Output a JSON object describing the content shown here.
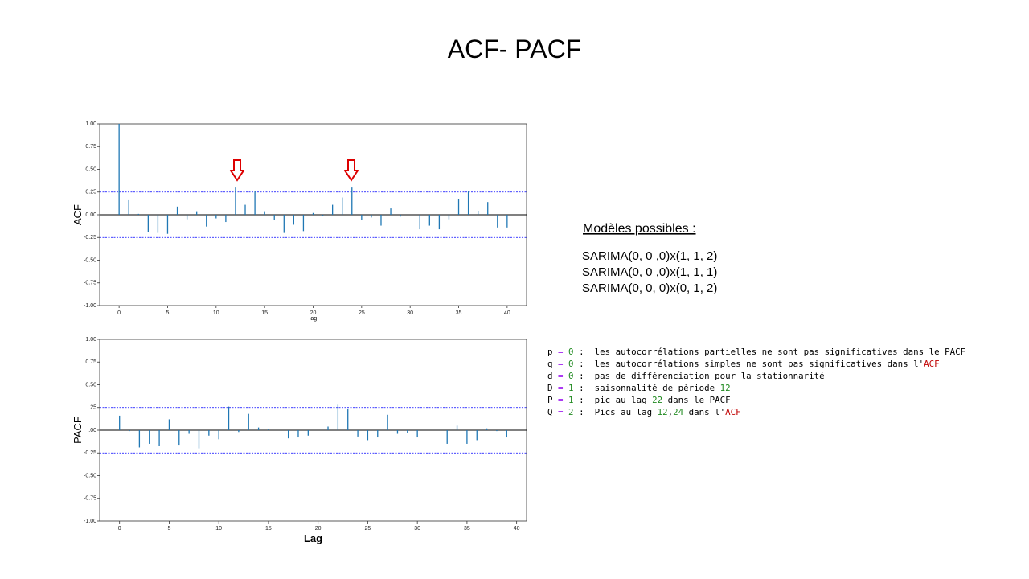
{
  "title": "ACF- PACF",
  "chart_data": [
    {
      "type": "stem",
      "ylabel": "ACF",
      "xlabel": "lag",
      "color": "#1f77b4",
      "band_color": "#0000ff",
      "x": [
        0,
        1,
        2,
        3,
        4,
        5,
        6,
        7,
        8,
        9,
        10,
        11,
        12,
        13,
        14,
        15,
        16,
        17,
        18,
        19,
        20,
        21,
        22,
        23,
        24,
        25,
        26,
        27,
        28,
        29,
        30,
        31,
        32,
        33,
        34,
        35,
        36,
        37,
        38,
        39,
        40
      ],
      "values": [
        1.0,
        0.16,
        0.01,
        -0.19,
        -0.2,
        -0.21,
        0.09,
        -0.05,
        0.03,
        -0.13,
        -0.04,
        -0.08,
        0.3,
        0.11,
        0.26,
        0.03,
        -0.06,
        -0.2,
        -0.11,
        -0.18,
        0.02,
        -0.01,
        0.11,
        0.19,
        0.3,
        -0.06,
        -0.03,
        -0.12,
        0.07,
        -0.02,
        0.0,
        -0.16,
        -0.12,
        -0.16,
        -0.05,
        0.17,
        0.26,
        0.04,
        0.14,
        -0.14,
        -0.14
      ],
      "conf_band": [
        -0.25,
        0.25
      ],
      "xlim": [
        -2,
        42
      ],
      "xticks": [
        0,
        5,
        10,
        15,
        20,
        25,
        30,
        35,
        40
      ],
      "ylim": [
        -1,
        1
      ],
      "yticks": [
        {
          "value": -1,
          "label": "-1.00"
        },
        -0.75,
        {
          "value": -0.5,
          "label": "-0.50"
        },
        -0.25,
        {
          "value": 0,
          "label": "0.00"
        },
        0.25,
        {
          "value": 0.5,
          "label": "0.50"
        },
        0.75,
        {
          "value": 1,
          "label": "1.00"
        }
      ]
    },
    {
      "type": "stem",
      "ylabel": "PACF",
      "xlabel": "Lag",
      "color": "#1f77b4",
      "band_color": "#0000ff",
      "x": [
        0,
        1,
        2,
        3,
        4,
        5,
        6,
        7,
        8,
        9,
        10,
        11,
        12,
        13,
        14,
        15,
        16,
        17,
        18,
        19,
        20,
        21,
        22,
        23,
        24,
        25,
        26,
        27,
        28,
        29,
        30,
        31,
        32,
        33,
        34,
        35,
        36,
        37,
        38,
        39
      ],
      "values": [
        0.16,
        -0.01,
        -0.19,
        -0.15,
        -0.17,
        0.12,
        -0.16,
        -0.04,
        -0.2,
        -0.06,
        -0.1,
        0.26,
        -0.02,
        0.18,
        0.03,
        0.01,
        0.0,
        -0.09,
        -0.08,
        -0.06,
        0.0,
        0.04,
        0.28,
        0.23,
        -0.07,
        -0.11,
        -0.08,
        0.17,
        -0.04,
        -0.03,
        -0.08,
        0.0,
        0.0,
        -0.15,
        0.05,
        -0.15,
        -0.11,
        0.02,
        -0.01,
        -0.08
      ],
      "conf_band": [
        -0.25,
        0.25
      ],
      "xlim": [
        -2,
        41
      ],
      "xticks": [
        0,
        5,
        10,
        15,
        20,
        25,
        30,
        35,
        40
      ],
      "ylim": [
        -1,
        1
      ],
      "yticks": [
        {
          "value": -1,
          "label": "-1.00"
        },
        -0.75,
        {
          "value": -0.5,
          "label": "-0.50"
        },
        -0.25,
        {
          "value": 0,
          "label": ".00"
        },
        {
          "value": 0.25,
          "label": "25"
        },
        {
          "value": 0.5,
          "label": "0.50"
        },
        0.75,
        {
          "value": 1,
          "label": "1.00"
        }
      ]
    }
  ],
  "models": {
    "heading": "Modèles possibles :",
    "items": [
      "SARIMA(0, 0 ,0)x(1, 1, 2)",
      "SARIMA(0, 0 ,0)x(1, 1, 1)",
      "SARIMA(0, 0, 0)x(0, 1, 2)"
    ]
  },
  "notes": [
    [
      {
        "text": "p "
      },
      {
        "text": "=",
        "color": "#a020f0"
      },
      {
        "text": " "
      },
      {
        "text": "0",
        "color": "#228b22"
      },
      {
        "text": " :  les autocorrélations partielles ne sont pas significatives dans le PACF"
      }
    ],
    [
      {
        "text": "q "
      },
      {
        "text": "=",
        "color": "#a020f0"
      },
      {
        "text": " "
      },
      {
        "text": "0",
        "color": "#228b22"
      },
      {
        "text": " :  les autocorrélations simples ne sont pas significatives dans l'"
      },
      {
        "text": "ACF",
        "color": "#c00000"
      }
    ],
    [
      {
        "text": "d "
      },
      {
        "text": "=",
        "color": "#a020f0"
      },
      {
        "text": " "
      },
      {
        "text": "0",
        "color": "#228b22"
      },
      {
        "text": " :  pas de différenciation pour la stationnarité"
      }
    ],
    [
      {
        "text": "D "
      },
      {
        "text": "=",
        "color": "#a020f0"
      },
      {
        "text": " "
      },
      {
        "text": "1",
        "color": "#228b22"
      },
      {
        "text": " :  saisonnalité de pèriode "
      },
      {
        "text": "12",
        "color": "#228b22"
      }
    ],
    [
      {
        "text": "P "
      },
      {
        "text": "=",
        "color": "#a020f0"
      },
      {
        "text": " "
      },
      {
        "text": "1",
        "color": "#228b22"
      },
      {
        "text": " :  pic au lag "
      },
      {
        "text": "22",
        "color": "#228b22"
      },
      {
        "text": " dans le PACF"
      }
    ],
    [
      {
        "text": "Q "
      },
      {
        "text": "=",
        "color": "#a020f0"
      },
      {
        "text": " "
      },
      {
        "text": "2",
        "color": "#228b22"
      },
      {
        "text": " :  Pics au lag "
      },
      {
        "text": "12",
        "color": "#228b22"
      },
      {
        "text": ","
      },
      {
        "text": "24",
        "color": "#228b22"
      },
      {
        "text": " dans l'"
      },
      {
        "text": "ACF",
        "color": "#c00000"
      }
    ]
  ]
}
